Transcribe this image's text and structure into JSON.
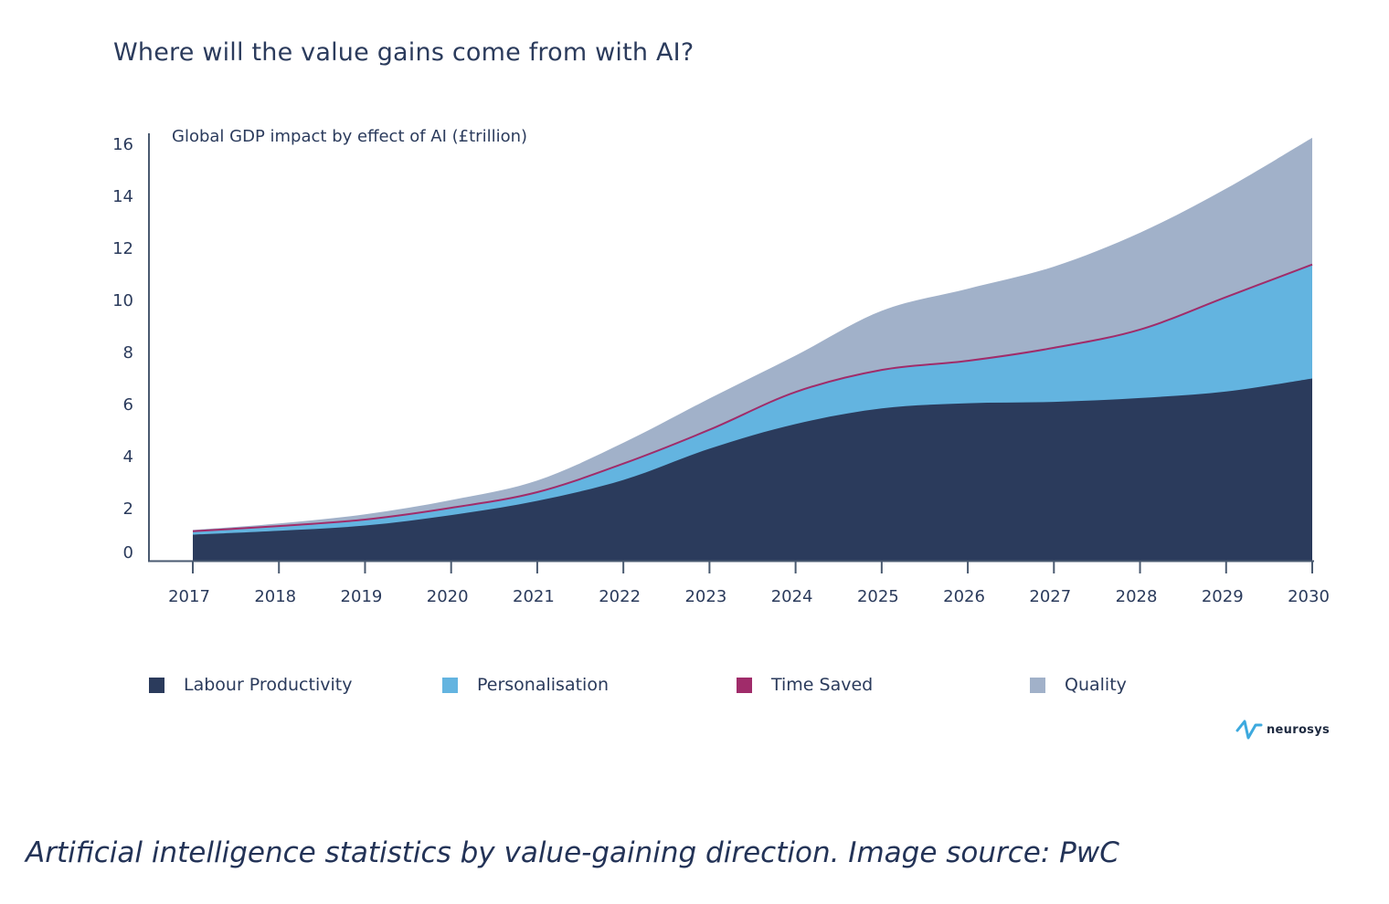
{
  "title": "Where will the value gains come from with AI?",
  "caption": "Artificial intelligence statistics by value-gaining direction. Image source: PwC",
  "logo_text": "neurosys",
  "chart_data": {
    "type": "area",
    "stacked": true,
    "ylabel": "Global GDP impact by effect of AI (£trillion)",
    "ylim": [
      0,
      16
    ],
    "yticks": [
      0,
      2,
      4,
      6,
      8,
      10,
      12,
      14,
      16
    ],
    "x": [
      "2017",
      "2018",
      "2019",
      "2020",
      "2021",
      "2022",
      "2023",
      "2024",
      "2025",
      "2026",
      "2027",
      "2028",
      "2029",
      "2030"
    ],
    "series": [
      {
        "name": "Labour Productivity",
        "color": "#2b3b5c",
        "values": [
          1.0,
          1.15,
          1.35,
          1.75,
          2.3,
          3.1,
          4.3,
          5.25,
          5.85,
          6.05,
          6.1,
          6.25,
          6.5,
          7.0
        ]
      },
      {
        "name": "Personalisation",
        "color": "#63b4e0",
        "values": [
          0.1,
          0.15,
          0.2,
          0.25,
          0.3,
          0.6,
          0.7,
          1.2,
          1.45,
          1.6,
          2.05,
          2.6,
          3.6,
          4.35
        ]
      },
      {
        "name": "Time Saved",
        "color": "#a02c6a",
        "values": [
          0.03,
          0.03,
          0.03,
          0.03,
          0.03,
          0.03,
          0.03,
          0.03,
          0.03,
          0.03,
          0.03,
          0.03,
          0.03,
          0.03
        ]
      },
      {
        "name": "Quality",
        "color": "#a1b1c9",
        "values": [
          0.05,
          0.1,
          0.2,
          0.3,
          0.45,
          0.8,
          1.2,
          1.4,
          2.27,
          2.77,
          3.12,
          3.72,
          4.17,
          4.87
        ]
      }
    ],
    "legend_position": "bottom",
    "grid": false
  }
}
